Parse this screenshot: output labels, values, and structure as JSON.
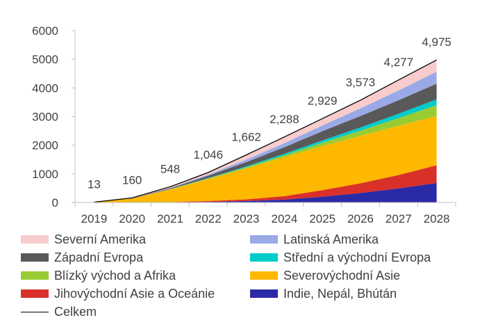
{
  "chart_data": {
    "type": "area",
    "stacked": true,
    "title": "",
    "xlabel": "",
    "ylabel": "",
    "ylim": [
      0,
      6000
    ],
    "yticks": [
      0,
      1000,
      2000,
      3000,
      4000,
      5000,
      6000
    ],
    "categories": [
      "2019",
      "2020",
      "2021",
      "2022",
      "2023",
      "2024",
      "2025",
      "2026",
      "2027",
      "2028"
    ],
    "series": [
      {
        "name": "Indie, Nepál, Bhútán",
        "color": "#2a2aa6",
        "values": [
          0,
          0,
          5,
          20,
          50,
          100,
          200,
          330,
          490,
          680
        ]
      },
      {
        "name": "Jihovýchodní Asie a Oceánie",
        "color": "#d9302a",
        "values": [
          0,
          0,
          10,
          30,
          60,
          120,
          230,
          340,
          470,
          620
        ]
      },
      {
        "name": "Severovýchodní Asie",
        "color": "#ffb800",
        "values": [
          13,
          140,
          440,
          770,
          1080,
          1360,
          1540,
          1660,
          1720,
          1720
        ]
      },
      {
        "name": "Blízký východ a Afrika",
        "color": "#99cc33",
        "values": [
          0,
          2,
          8,
          20,
          40,
          70,
          120,
          180,
          270,
          380
        ]
      },
      {
        "name": "Střední a východní Evropa",
        "color": "#00cccc",
        "values": [
          0,
          1,
          5,
          15,
          30,
          50,
          80,
          110,
          150,
          200
        ]
      },
      {
        "name": "Západní Evropa",
        "color": "#595959",
        "values": [
          0,
          5,
          25,
          80,
          150,
          230,
          320,
          400,
          470,
          550
        ]
      },
      {
        "name": "Latinská Amerika",
        "color": "#99aae6",
        "values": [
          0,
          2,
          15,
          40,
          90,
          140,
          200,
          270,
          340,
          420
        ]
      },
      {
        "name": "Severní Amerika",
        "color": "#f8cccc",
        "values": [
          0,
          10,
          40,
          71,
          162,
          218,
          239,
          283,
          367,
          405
        ]
      }
    ],
    "total": {
      "name": "Celkem",
      "color": "#000000",
      "values": [
        13,
        160,
        548,
        1046,
        1662,
        2288,
        2929,
        3573,
        4277,
        4975
      ]
    },
    "data_labels": [
      "13",
      "160",
      "548",
      "1,046",
      "1,662",
      "2,288",
      "2,929",
      "3,573",
      "4,277",
      "4,975"
    ],
    "legend_position": "bottom",
    "legend_entries": [
      {
        "label": "Severní Amerika",
        "color": "#f8cccc",
        "kind": "area"
      },
      {
        "label": "Latinská Amerika",
        "color": "#99aae6",
        "kind": "area"
      },
      {
        "label": "Západní Evropa",
        "color": "#595959",
        "kind": "area"
      },
      {
        "label": "Střední a východní Evropa",
        "color": "#00cccc",
        "kind": "area"
      },
      {
        "label": "Blízký východ a Afrika",
        "color": "#99cc33",
        "kind": "area"
      },
      {
        "label": "Severovýchodní Asie",
        "color": "#ffb800",
        "kind": "area"
      },
      {
        "label": "Jihovýchodní Asie a Oceánie",
        "color": "#d9302a",
        "kind": "area"
      },
      {
        "label": "Indie, Nepál, Bhútán",
        "color": "#2a2aa6",
        "kind": "area"
      },
      {
        "label": "Celkem",
        "color": "#000000",
        "kind": "line"
      }
    ]
  }
}
